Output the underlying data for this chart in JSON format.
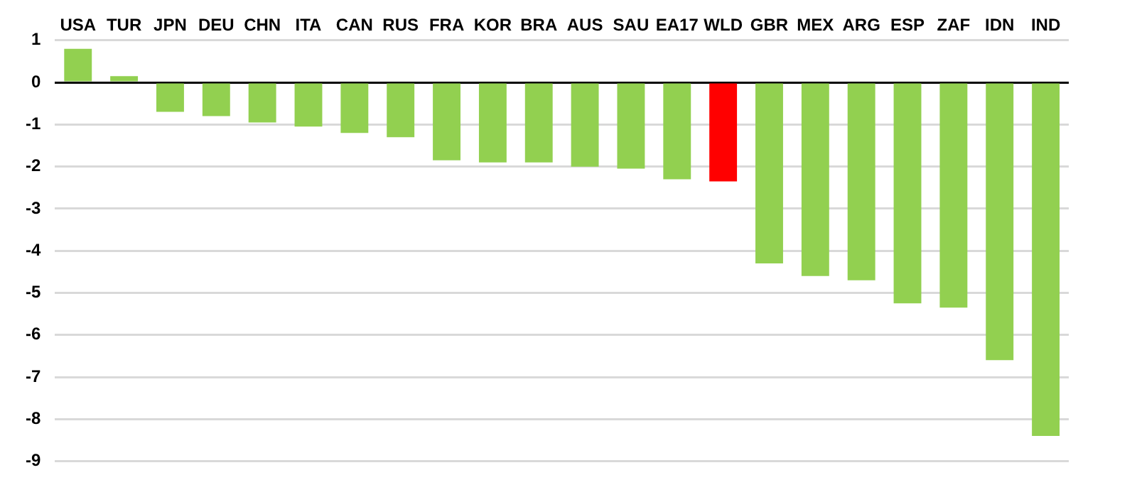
{
  "chart_data": {
    "type": "bar",
    "categories": [
      "USA",
      "TUR",
      "JPN",
      "DEU",
      "CHN",
      "ITA",
      "CAN",
      "RUS",
      "FRA",
      "KOR",
      "BRA",
      "AUS",
      "SAU",
      "EA17",
      "WLD",
      "GBR",
      "MEX",
      "ARG",
      "ESP",
      "ZAF",
      "IDN",
      "IND"
    ],
    "values": [
      0.8,
      0.15,
      -0.7,
      -0.8,
      -0.95,
      -1.05,
      -1.2,
      -1.3,
      -1.85,
      -1.9,
      -1.9,
      -2.0,
      -2.05,
      -2.3,
      -2.35,
      -4.3,
      -4.6,
      -4.7,
      -5.25,
      -5.35,
      -6.6,
      -8.4
    ],
    "colors": [
      "#92d050",
      "#92d050",
      "#92d050",
      "#92d050",
      "#92d050",
      "#92d050",
      "#92d050",
      "#92d050",
      "#92d050",
      "#92d050",
      "#92d050",
      "#92d050",
      "#92d050",
      "#92d050",
      "#ff0000",
      "#92d050",
      "#92d050",
      "#92d050",
      "#92d050",
      "#92d050",
      "#92d050",
      "#92d050"
    ],
    "ylim": [
      -9,
      1
    ],
    "yticks": [
      1,
      0,
      -1,
      -2,
      -3,
      -4,
      -5,
      -6,
      -7,
      -8,
      -9
    ],
    "grid": "y",
    "legend": false
  }
}
